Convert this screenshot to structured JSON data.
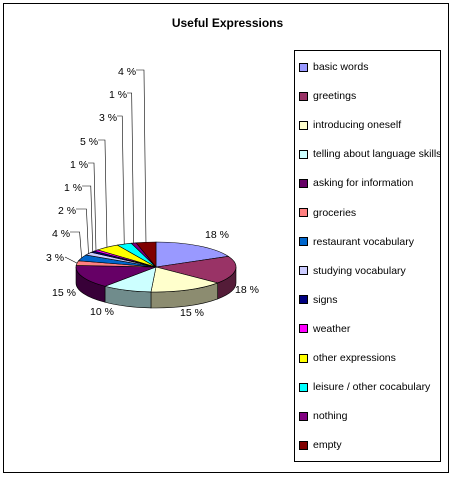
{
  "chart_data": {
    "type": "pie",
    "title": "Useful Expressions",
    "legend_position": "right",
    "slices": [
      {
        "name": "basic words",
        "value": 18,
        "label": "18 %",
        "color": "#9999ff"
      },
      {
        "name": "greetings",
        "value": 18,
        "label": "18 %",
        "color": "#993366"
      },
      {
        "name": "introducing oneself",
        "value": 15,
        "label": "15 %",
        "color": "#ffffcc"
      },
      {
        "name": "telling about language skills",
        "value": 10,
        "label": "10 %",
        "color": "#ccffff"
      },
      {
        "name": "asking for information",
        "value": 15,
        "label": "15 %",
        "color": "#660066"
      },
      {
        "name": "groceries",
        "value": 3,
        "label": "3 %",
        "color": "#ff8080"
      },
      {
        "name": "restaurant vocabulary",
        "value": 4,
        "label": "4 %",
        "color": "#0066cc"
      },
      {
        "name": "studying vocabulary",
        "value": 2,
        "label": "2 %",
        "color": "#ccccff"
      },
      {
        "name": "signs",
        "value": 1,
        "label": "1 %",
        "color": "#000080"
      },
      {
        "name": "weather",
        "value": 1,
        "label": "1 %",
        "color": "#ff00ff"
      },
      {
        "name": "other expressions",
        "value": 5,
        "label": "5 %",
        "color": "#ffff00"
      },
      {
        "name": "leisure / other cocabulary",
        "value": 3,
        "label": "3 %",
        "color": "#00ffff"
      },
      {
        "name": "nothing",
        "value": 1,
        "label": "1 %",
        "color": "#800080"
      },
      {
        "name": "empty",
        "value": 4,
        "label": "4 %",
        "color": "#800000"
      }
    ]
  }
}
